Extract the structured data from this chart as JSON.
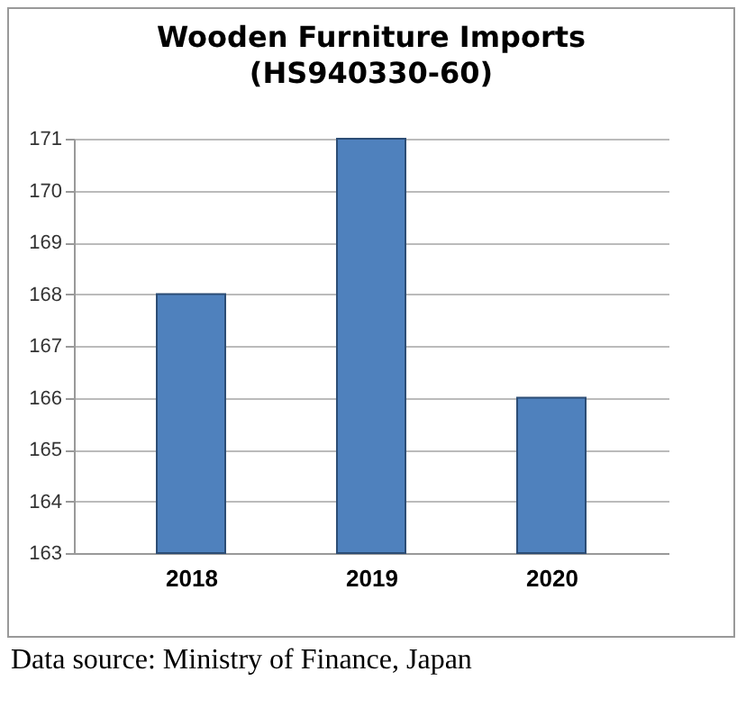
{
  "chart_data": {
    "type": "bar",
    "title": "Wooden Furniture Imports",
    "subtitle": "(HS940330-60)",
    "categories": [
      "2018",
      "2019",
      "2020"
    ],
    "values": [
      168,
      171,
      166
    ],
    "color": "#4f81bd",
    "ylim": [
      163,
      171
    ],
    "yticks": [
      163,
      164,
      165,
      166,
      167,
      168,
      169,
      170,
      171
    ],
    "grid": "y",
    "annotations": [
      "Data source: Ministry of Finance, Japan"
    ]
  }
}
